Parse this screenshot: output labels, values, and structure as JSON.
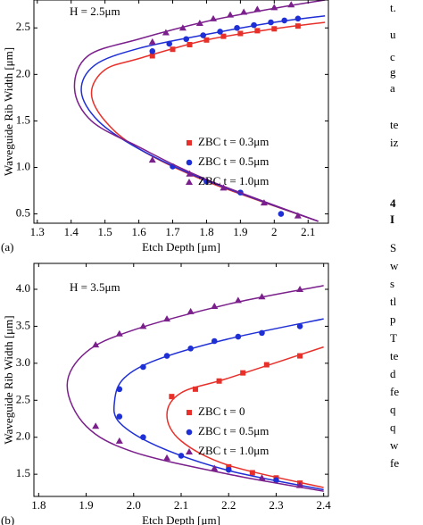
{
  "chart_data": [
    {
      "type": "line",
      "panel_label": "(a)",
      "annotation": "H = 2.5μm",
      "xlabel": "Etch Depth [μm]",
      "ylabel": "Waveguide Rib Width [μm]",
      "xlim": [
        1.29,
        2.16
      ],
      "ylim": [
        0.4,
        2.8
      ],
      "xticks": [
        1.3,
        1.4,
        1.5,
        1.6,
        1.7,
        1.8,
        1.9,
        2.0,
        2.1
      ],
      "yticks": [
        0.5,
        {
          "value": 1.0,
          "label": "1.0"
        },
        1.5,
        {
          "value": 2.0,
          "label": "2.0"
        },
        2.5
      ],
      "legend": "center-right",
      "series": [
        {
          "name": "ZBC  t = 0.3μm",
          "color": "#e8302a",
          "marker": "square",
          "x": [
            1.64,
            1.7,
            1.75,
            1.8,
            1.85,
            1.9,
            1.95,
            2.0,
            2.07
          ],
          "values": [
            2.2,
            2.27,
            2.32,
            2.37,
            2.41,
            2.44,
            2.47,
            2.49,
            2.52
          ],
          "fit_x": [
            2.13,
            1.8,
            1.6,
            1.5,
            1.46,
            1.5,
            1.6,
            1.8,
            2.0,
            2.15
          ],
          "fit_y": [
            0.42,
            0.85,
            1.2,
            1.5,
            1.8,
            2.05,
            2.17,
            2.37,
            2.49,
            2.56
          ]
        },
        {
          "name": "ZBC  t = 0.5μm",
          "color": "#1f2fd6",
          "marker": "circle",
          "x": [
            1.64,
            1.69,
            1.74,
            1.79,
            1.84,
            1.89,
            1.94,
            1.99,
            2.03,
            2.07,
            1.7,
            1.8,
            1.9,
            2.02
          ],
          "values": [
            2.25,
            2.33,
            2.38,
            2.42,
            2.46,
            2.5,
            2.53,
            2.56,
            2.58,
            2.6,
            1.01,
            0.85,
            0.73,
            0.5
          ],
          "fit_x": [
            2.13,
            1.8,
            1.6,
            1.48,
            1.43,
            1.47,
            1.6,
            1.8,
            2.0,
            2.15
          ],
          "fit_y": [
            0.42,
            0.86,
            1.2,
            1.5,
            1.82,
            2.1,
            2.28,
            2.43,
            2.56,
            2.63
          ]
        },
        {
          "name": "ZBC  t = 1.0μm",
          "color": "#7b1f8c",
          "marker": "triangle",
          "x": [
            1.64,
            1.68,
            1.73,
            1.78,
            1.82,
            1.87,
            1.91,
            1.95,
            2.0,
            2.05,
            1.64,
            1.75,
            1.85,
            1.97,
            2.07
          ],
          "values": [
            2.35,
            2.45,
            2.5,
            2.55,
            2.6,
            2.64,
            2.67,
            2.7,
            2.72,
            2.75,
            1.08,
            0.93,
            0.78,
            0.62,
            0.48
          ],
          "fit_x": [
            2.13,
            1.8,
            1.6,
            1.46,
            1.41,
            1.45,
            1.6,
            1.8,
            2.0,
            2.15
          ],
          "fit_y": [
            0.42,
            0.87,
            1.22,
            1.5,
            1.85,
            2.2,
            2.38,
            2.57,
            2.71,
            2.8
          ]
        }
      ]
    },
    {
      "type": "line",
      "panel_label": "(b)",
      "annotation": "H = 3.5μm",
      "xlabel": "Etch Depth [μm]",
      "ylabel": "Waveguide Rib Width [μm]",
      "xlim": [
        1.79,
        2.41
      ],
      "ylim": [
        1.2,
        4.35
      ],
      "xticks": [
        1.8,
        1.9,
        {
          "value": 2.0,
          "label": "2.0"
        },
        2.1,
        2.2,
        2.3,
        2.4
      ],
      "yticks": [
        1.5,
        {
          "value": 2.0,
          "label": "2.0"
        },
        2.5,
        {
          "value": 3.0,
          "label": "3.0"
        },
        3.5,
        {
          "value": 4.0,
          "label": "4.0"
        }
      ],
      "legend": "center-right",
      "series": [
        {
          "name": "ZBC  t = 0",
          "color": "#e8302a",
          "marker": "square",
          "x": [
            2.08,
            2.13,
            2.18,
            2.23,
            2.28,
            2.35,
            2.2,
            2.25,
            2.3,
            2.35
          ],
          "values": [
            2.55,
            2.65,
            2.76,
            2.87,
            2.98,
            3.1,
            1.6,
            1.52,
            1.45,
            1.38
          ],
          "fit_x": [
            2.4,
            2.2,
            2.1,
            2.07,
            2.1,
            2.2,
            2.4
          ],
          "fit_y": [
            1.32,
            1.62,
            1.95,
            2.3,
            2.6,
            2.8,
            3.22
          ]
        },
        {
          "name": "ZBC  t = 0.5μm",
          "color": "#1f2fd6",
          "marker": "circle",
          "x": [
            1.97,
            2.02,
            2.07,
            2.12,
            2.17,
            2.22,
            2.27,
            2.35,
            1.97,
            2.02,
            2.1,
            2.2,
            2.3
          ],
          "values": [
            2.65,
            2.95,
            3.1,
            3.2,
            3.3,
            3.36,
            3.41,
            3.5,
            2.28,
            2.0,
            1.75,
            1.56,
            1.42
          ],
          "fit_x": [
            2.4,
            2.2,
            2.05,
            1.97,
            1.96,
            1.98,
            2.05,
            2.2,
            2.4
          ],
          "fit_y": [
            1.29,
            1.55,
            1.88,
            2.2,
            2.5,
            2.8,
            3.05,
            3.33,
            3.6
          ]
        },
        {
          "name": "ZBC  t = 1.0μm",
          "color": "#7b1f8c",
          "marker": "triangle",
          "x": [
            1.92,
            1.97,
            2.02,
            2.07,
            2.12,
            2.17,
            2.22,
            2.27,
            2.35,
            1.92,
            1.97,
            2.07,
            2.17,
            2.27,
            2.35
          ],
          "values": [
            3.25,
            3.4,
            3.5,
            3.6,
            3.7,
            3.77,
            3.85,
            3.9,
            4.0,
            2.15,
            1.95,
            1.72,
            1.58,
            1.45,
            1.35
          ],
          "fit_x": [
            2.4,
            2.2,
            2.0,
            1.9,
            1.86,
            1.9,
            2.0,
            2.2,
            2.4
          ],
          "fit_y": [
            1.27,
            1.5,
            1.8,
            2.15,
            2.7,
            3.15,
            3.45,
            3.8,
            4.05
          ]
        }
      ]
    }
  ],
  "side_text": [
    "t.",
    "u",
    "c",
    "g",
    "a",
    "te",
    "iz",
    "4",
    "I",
    "S",
    "w",
    "s",
    "tl",
    "p",
    "T",
    "te",
    "d",
    "fe",
    "q",
    "q",
    "w",
    "fe"
  ]
}
